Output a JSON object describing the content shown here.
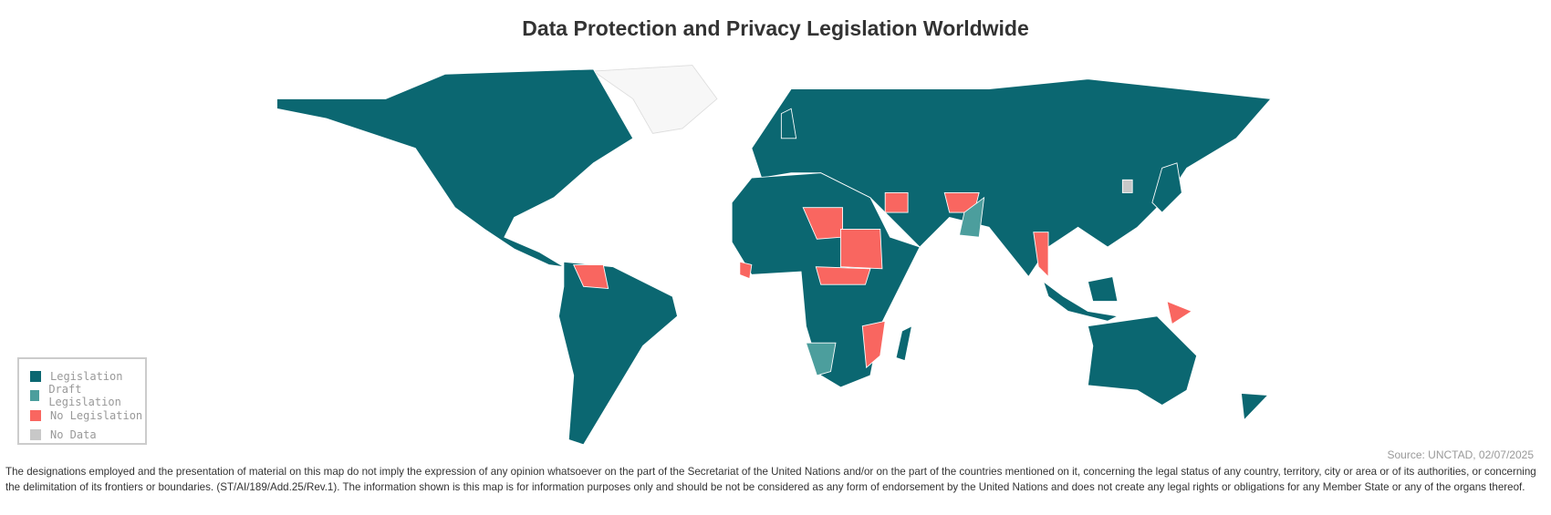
{
  "title": "Data Protection and Privacy Legislation Worldwide",
  "legend": [
    {
      "label": "Legislation",
      "color": "#0b6771"
    },
    {
      "label": "Draft Legislation",
      "color": "#4c9e9d"
    },
    {
      "label": "No Legislation",
      "color": "#f96660"
    },
    {
      "label": "No Data",
      "color": "#c8c8c8"
    }
  ],
  "source": "Source: UNCTAD, 02/07/2025",
  "disclaimer": "The designations employed and the presentation of material on this map do not imply the expression of any opinion whatsoever on the part of the Secretariat of the United Nations and/or on the part of the countries mentioned on it, concerning the legal status of any country, territory, city or area or of its authorities, or concerning the delimitation of its frontiers or boundaries. (ST/AI/189/Add.25/Rev.1). The information shown is this map is for information purposes only and should be not be considered as any form of endorsement by the United Nations and does not create any legal rights or obligations for any Member State or any of the organs thereof."
}
